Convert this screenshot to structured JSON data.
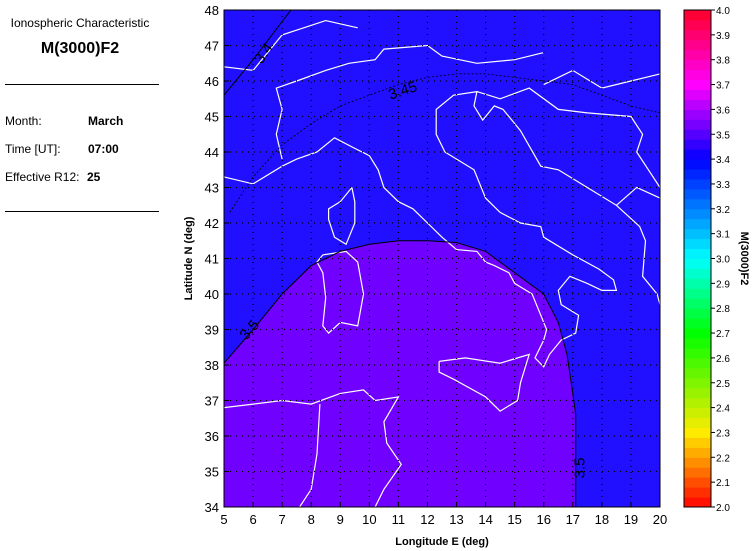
{
  "panel": {
    "caption": "Ionospheric Characteristic",
    "parameter": "M(3000)F2",
    "month_label": "Month:",
    "month": "March",
    "time_label": "Time [UT]:",
    "time": "07:00",
    "r12_label": "Effective R12:",
    "r12": "25"
  },
  "chart_data": {
    "type": "heatmap",
    "xlabel": "Longitude E (deg)",
    "ylabel": "Latitude N (deg)",
    "xlim": [
      5,
      20
    ],
    "ylim": [
      34,
      48
    ],
    "xticks": [
      "5",
      "6",
      "7",
      "8",
      "9",
      "10",
      "11",
      "12",
      "13",
      "14",
      "15",
      "16",
      "17",
      "18",
      "19",
      "20"
    ],
    "yticks": [
      "34",
      "35",
      "36",
      "37",
      "38",
      "39",
      "40",
      "41",
      "42",
      "43",
      "44",
      "45",
      "46",
      "47",
      "48"
    ],
    "grid": true,
    "colorbar": {
      "label": "M(3000)F2",
      "range": [
        2.0,
        4.0
      ],
      "ticks": [
        "2.0",
        "2.1",
        "2.2",
        "2.3",
        "2.4",
        "2.5",
        "2.6",
        "2.7",
        "2.8",
        "2.9",
        "3.0",
        "3.1",
        "3.2",
        "3.3",
        "3.4",
        "3.5",
        "3.6",
        "3.7",
        "3.8",
        "3.9",
        "4.0"
      ]
    },
    "regions": [
      {
        "range": "3.4-3.5",
        "color": "#2010ff"
      },
      {
        "range": ">3.5",
        "color": "#7000ff"
      }
    ],
    "contours": [
      {
        "level": "3.4",
        "style": "solid",
        "points": [
          [
            5,
            45.6
          ],
          [
            6,
            46.6
          ],
          [
            7.3,
            48
          ]
        ]
      },
      {
        "level": "3.45",
        "style": "dotted",
        "points": [
          [
            5.2,
            42.3
          ],
          [
            6,
            43.3
          ],
          [
            7,
            44.2
          ],
          [
            8,
            44.8
          ],
          [
            9,
            45.3
          ],
          [
            10,
            45.6
          ],
          [
            11,
            45.9
          ],
          [
            12,
            46.1
          ],
          [
            13,
            46.2
          ],
          [
            14,
            46.2
          ],
          [
            15,
            46.1
          ],
          [
            16,
            46
          ],
          [
            17,
            45.9
          ],
          [
            18,
            45.6
          ],
          [
            19,
            45.3
          ],
          [
            20,
            45.1
          ]
        ]
      },
      {
        "level": "3.5",
        "style": "solid",
        "points": [
          [
            5,
            38.05
          ],
          [
            6,
            39
          ],
          [
            7,
            40
          ],
          [
            8,
            40.8
          ],
          [
            9,
            41.2
          ],
          [
            10,
            41.4
          ],
          [
            11,
            41.5
          ],
          [
            12,
            41.5
          ],
          [
            13,
            41.45
          ],
          [
            14,
            41.2
          ],
          [
            15,
            40.6
          ],
          [
            16,
            40
          ],
          [
            16.5,
            39.2
          ],
          [
            16.8,
            38.3
          ],
          [
            17,
            37.2
          ],
          [
            17.1,
            36.6
          ],
          [
            17.1,
            34
          ]
        ]
      }
    ]
  }
}
